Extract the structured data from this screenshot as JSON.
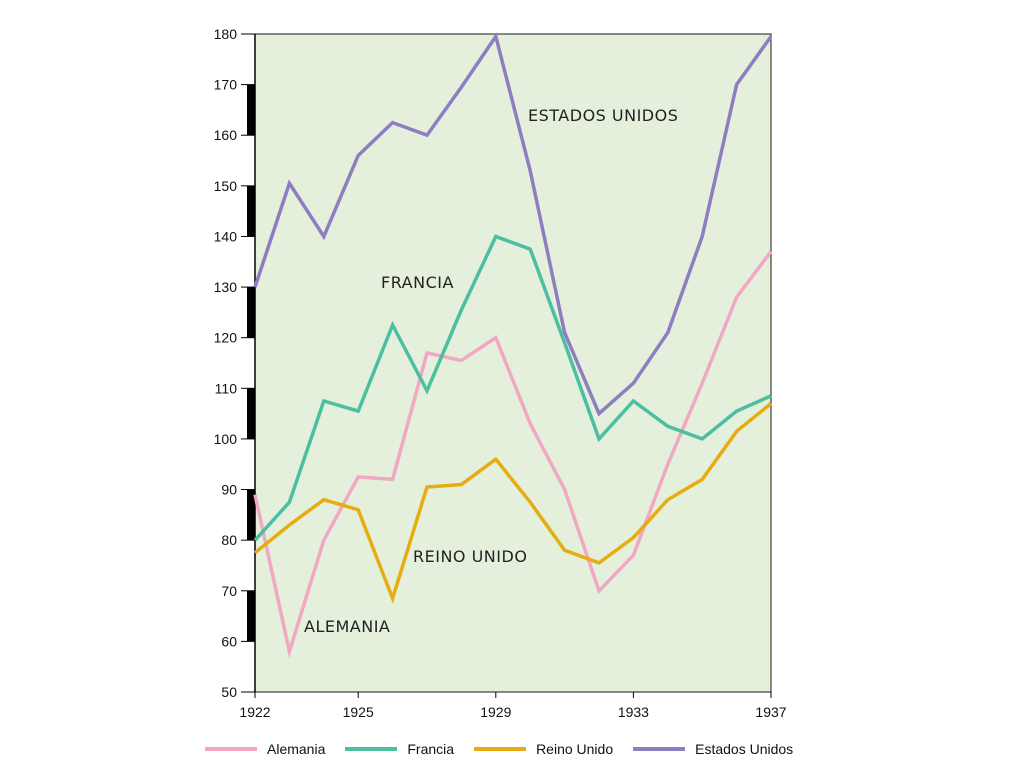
{
  "chart_data": {
    "type": "line",
    "x": [
      1922,
      1923,
      1924,
      1925,
      1926,
      1927,
      1928,
      1929,
      1930,
      1931,
      1932,
      1933,
      1934,
      1935,
      1936,
      1937
    ],
    "x_ticks": [
      "1922",
      "1925",
      "1929",
      "1933",
      "1937"
    ],
    "y_ticks": [
      "50",
      "60",
      "70",
      "80",
      "90",
      "100",
      "110",
      "120",
      "130",
      "140",
      "150",
      "160",
      "170",
      "180"
    ],
    "ylim": [
      50,
      180
    ],
    "xlim": [
      1922,
      1937
    ],
    "grid": false,
    "legend_position": "bottom",
    "background_color": "#e4f0dc",
    "series": [
      {
        "name": "Alemania",
        "color": "#f0a8c4",
        "values": [
          89,
          58,
          80,
          92.5,
          92,
          117,
          115.5,
          120,
          103,
          90,
          70,
          77,
          95,
          111,
          128,
          137
        ]
      },
      {
        "name": "Francia",
        "color": "#4cbfa0",
        "values": [
          80,
          87.5,
          107.5,
          105.5,
          122.5,
          109.5,
          125.5,
          140,
          137.5,
          119,
          100,
          107.5,
          102.5,
          100,
          105.5,
          108.5
        ]
      },
      {
        "name": "Reino Unido",
        "color": "#e6ad12",
        "values": [
          77.5,
          83,
          88,
          86,
          68.5,
          90.5,
          91,
          96,
          87.5,
          78,
          75.5,
          80.5,
          88,
          92,
          101.5,
          107
        ]
      },
      {
        "name": "Estados Unidos",
        "color": "#8e7ec0",
        "values": [
          130,
          150.5,
          140,
          156,
          162.5,
          160,
          169.5,
          179.5,
          153,
          121,
          105,
          111,
          121,
          140,
          170,
          179.5
        ]
      }
    ],
    "annotations": [
      "ESTADOS UNIDOS",
      "FRANCIA",
      "REINO UNIDO",
      "ALEMANIA"
    ]
  }
}
